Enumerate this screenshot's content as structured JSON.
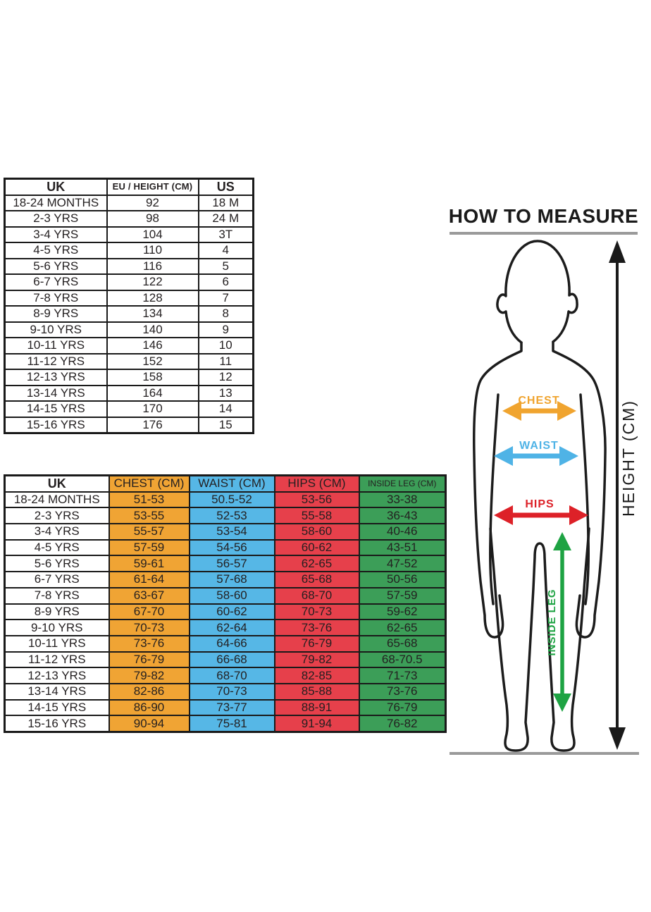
{
  "colors": {
    "chest": "#F0A434",
    "waist": "#56B7E6",
    "hips": "#E6404B",
    "inside_leg": "#3C9E58",
    "arrow_chest": "#F0A42F",
    "arrow_waist": "#4FB3E6",
    "arrow_hips": "#DD2128",
    "arrow_inside_leg": "#1EA343",
    "ink": "#1A1A1A",
    "gray_line": "#9A9A9A"
  },
  "size_table": {
    "columns": [
      "UK",
      "EU / HEIGHT (CM)",
      "US"
    ],
    "rows": [
      [
        "18-24 MONTHS",
        "92",
        "18 M"
      ],
      [
        "2-3 YRS",
        "98",
        "24 M"
      ],
      [
        "3-4 YRS",
        "104",
        "3T"
      ],
      [
        "4-5 YRS",
        "110",
        "4"
      ],
      [
        "5-6 YRS",
        "116",
        "5"
      ],
      [
        "6-7 YRS",
        "122",
        "6"
      ],
      [
        "7-8 YRS",
        "128",
        "7"
      ],
      [
        "8-9 YRS",
        "134",
        "8"
      ],
      [
        "9-10 YRS",
        "140",
        "9"
      ],
      [
        "10-11 YRS",
        "146",
        "10"
      ],
      [
        "11-12 YRS",
        "152",
        "11"
      ],
      [
        "12-13 YRS",
        "158",
        "12"
      ],
      [
        "13-14 YRS",
        "164",
        "13"
      ],
      [
        "14-15 YRS",
        "170",
        "14"
      ],
      [
        "15-16 YRS",
        "176",
        "15"
      ]
    ]
  },
  "measure_table": {
    "columns": [
      {
        "label": "UK",
        "bg": "#FFFFFF"
      },
      {
        "label": "CHEST (CM)",
        "bg": "#F0A434"
      },
      {
        "label": "WAIST (CM)",
        "bg": "#56B7E6"
      },
      {
        "label": "HIPS (CM)",
        "bg": "#E6404B"
      },
      {
        "label": "INSIDE LEG (CM)",
        "bg": "#3C9E58",
        "small": true
      }
    ],
    "rows": [
      [
        "18-24 MONTHS",
        "51-53",
        "50.5-52",
        "53-56",
        "33-38"
      ],
      [
        "2-3 YRS",
        "53-55",
        "52-53",
        "55-58",
        "36-43"
      ],
      [
        "3-4 YRS",
        "55-57",
        "53-54",
        "58-60",
        "40-46"
      ],
      [
        "4-5 YRS",
        "57-59",
        "54-56",
        "60-62",
        "43-51"
      ],
      [
        "5-6 YRS",
        "59-61",
        "56-57",
        "62-65",
        "47-52"
      ],
      [
        "6-7 YRS",
        "61-64",
        "57-68",
        "65-68",
        "50-56"
      ],
      [
        "7-8 YRS",
        "63-67",
        "58-60",
        "68-70",
        "57-59"
      ],
      [
        "8-9 YRS",
        "67-70",
        "60-62",
        "70-73",
        "59-62"
      ],
      [
        "9-10 YRS",
        "70-73",
        "62-64",
        "73-76",
        "62-65"
      ],
      [
        "10-11 YRS",
        "73-76",
        "64-66",
        "76-79",
        "65-68"
      ],
      [
        "11-12 YRS",
        "76-79",
        "66-68",
        "79-82",
        "68-70.5"
      ],
      [
        "12-13 YRS",
        "79-82",
        "68-70",
        "82-85",
        "71-73"
      ],
      [
        "13-14 YRS",
        "82-86",
        "70-73",
        "85-88",
        "73-76"
      ],
      [
        "14-15 YRS",
        "86-90",
        "73-77",
        "88-91",
        "76-79"
      ],
      [
        "15-16 YRS",
        "90-94",
        "75-81",
        "91-94",
        "76-82"
      ]
    ]
  },
  "how_to_measure": {
    "title": "HOW TO MEASURE",
    "chest_label": "CHEST",
    "waist_label": "WAIST",
    "hips_label": "HIPS",
    "inside_leg_label": "INSIDE LEG",
    "height_label": "HEIGHT (CM)"
  }
}
